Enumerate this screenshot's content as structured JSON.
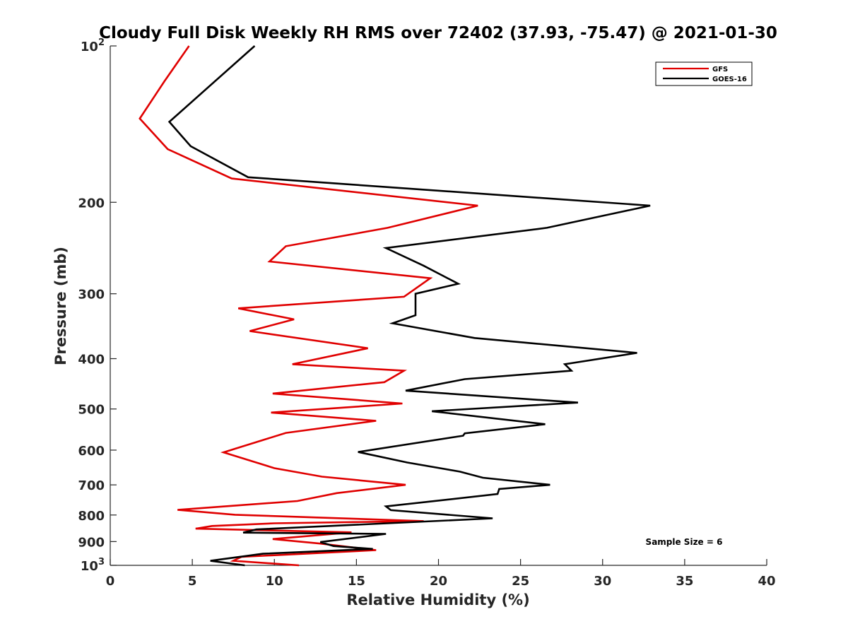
{
  "chart_data": {
    "type": "line",
    "title": "Cloudy Full Disk Weekly RH RMS over 72402 (37.93, -75.47) @ 2021-01-30",
    "xlabel": "Relative Humidity (%)",
    "ylabel": "Pressure (mb)",
    "xlim": [
      0,
      40
    ],
    "ylim": [
      100,
      1000
    ],
    "y_scale": "log",
    "y_reversed": true,
    "x_ticks": [
      0,
      5,
      10,
      15,
      20,
      25,
      30,
      35,
      40
    ],
    "x_tick_labels": [
      "0",
      "5",
      "10",
      "15",
      "20",
      "25",
      "30",
      "35",
      "40"
    ],
    "y_ticks": [
      100,
      200,
      300,
      400,
      500,
      600,
      700,
      800,
      900,
      1000
    ],
    "y_tick_labels": [
      {
        "base": "10",
        "exp": "2"
      },
      {
        "base": "200",
        "exp": ""
      },
      {
        "base": "300",
        "exp": ""
      },
      {
        "base": "400",
        "exp": ""
      },
      {
        "base": "500",
        "exp": ""
      },
      {
        "base": "600",
        "exp": ""
      },
      {
        "base": "700",
        "exp": ""
      },
      {
        "base": "800",
        "exp": ""
      },
      {
        "base": "900",
        "exp": ""
      },
      {
        "base": "10",
        "exp": "3"
      }
    ],
    "grid": false,
    "legend_position": "top-right",
    "annotation": "Sample Size = 6",
    "series": [
      {
        "name": "GFS",
        "color": "#e00000",
        "points": [
          [
            4.8,
            100
          ],
          [
            3.3,
            117
          ],
          [
            1.8,
            138
          ],
          [
            3.5,
            158
          ],
          [
            7.4,
            180
          ],
          [
            22.4,
            203
          ],
          [
            16.9,
            224
          ],
          [
            10.7,
            243
          ],
          [
            9.7,
            260
          ],
          [
            19.5,
            280
          ],
          [
            17.9,
            304
          ],
          [
            7.8,
            320
          ],
          [
            11.2,
            336
          ],
          [
            8.5,
            354
          ],
          [
            15.7,
            382
          ],
          [
            11.1,
            410
          ],
          [
            17.9,
            422
          ],
          [
            16.7,
            444
          ],
          [
            9.9,
            467
          ],
          [
            17.8,
            488
          ],
          [
            9.8,
            508
          ],
          [
            16.2,
            527
          ],
          [
            10.7,
            556
          ],
          [
            6.9,
            606
          ],
          [
            10.0,
            650
          ],
          [
            12.9,
            675
          ],
          [
            18.0,
            700
          ],
          [
            13.8,
            726
          ],
          [
            11.4,
            752
          ],
          [
            4.1,
            782
          ],
          [
            7.6,
            799
          ],
          [
            19.1,
            822
          ],
          [
            10.0,
            830
          ],
          [
            6.2,
            840
          ],
          [
            5.2,
            850
          ],
          [
            14.7,
            864
          ],
          [
            9.9,
            890
          ],
          [
            12.8,
            908
          ],
          [
            16.2,
            935
          ],
          [
            8.0,
            963
          ],
          [
            7.5,
            980
          ],
          [
            11.5,
            1000
          ]
        ]
      },
      {
        "name": "GOES-16",
        "color": "#000000",
        "points": [
          [
            8.8,
            100
          ],
          [
            3.6,
            140
          ],
          [
            4.9,
            156
          ],
          [
            8.4,
            179
          ],
          [
            32.9,
            203
          ],
          [
            26.6,
            224
          ],
          [
            16.8,
            245
          ],
          [
            19.1,
            265
          ],
          [
            21.2,
            287
          ],
          [
            18.6,
            300
          ],
          [
            18.6,
            330
          ],
          [
            17.2,
            342
          ],
          [
            22.2,
            365
          ],
          [
            32.1,
            390
          ],
          [
            27.7,
            410
          ],
          [
            28.1,
            422
          ],
          [
            21.6,
            438
          ],
          [
            18.0,
            461
          ],
          [
            28.5,
            486
          ],
          [
            19.6,
            505
          ],
          [
            26.5,
            535
          ],
          [
            21.6,
            557
          ],
          [
            21.5,
            563
          ],
          [
            15.1,
            605
          ],
          [
            18.1,
            634
          ],
          [
            21.3,
            660
          ],
          [
            22.7,
            678
          ],
          [
            26.8,
            700
          ],
          [
            23.7,
            713
          ],
          [
            23.6,
            729
          ],
          [
            16.8,
            770
          ],
          [
            17.1,
            783
          ],
          [
            23.3,
            812
          ],
          [
            8.9,
            853
          ],
          [
            8.1,
            865
          ],
          [
            16.8,
            870
          ],
          [
            12.8,
            902
          ],
          [
            13.6,
            918
          ],
          [
            16.0,
            930
          ],
          [
            9.3,
            950
          ],
          [
            6.1,
            980
          ],
          [
            8.2,
            1000
          ]
        ]
      }
    ]
  }
}
